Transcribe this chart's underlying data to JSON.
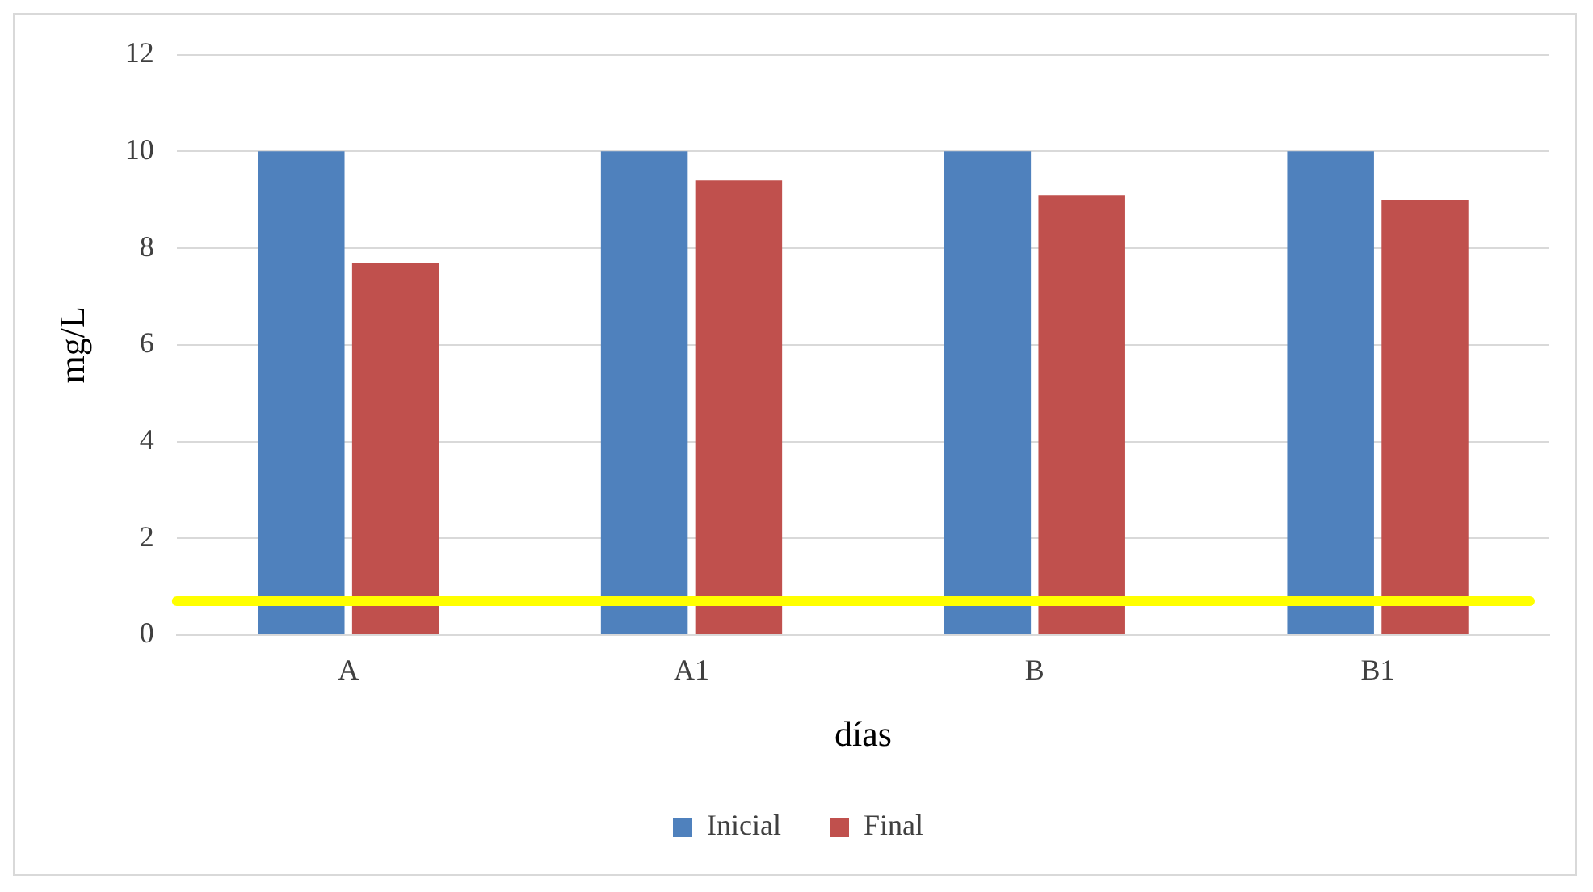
{
  "chart_data": {
    "type": "bar",
    "xlabel": "días",
    "ylabel": "mg/L",
    "categories": [
      "A",
      "A1",
      "B",
      "B1"
    ],
    "series": [
      {
        "name": "Inicial",
        "color": "#4f81bd",
        "values": [
          10,
          10,
          10,
          10
        ]
      },
      {
        "name": "Final",
        "color": "#c0504d",
        "values": [
          7.7,
          9.4,
          9.1,
          9.0
        ]
      }
    ],
    "ylim": [
      0,
      12
    ],
    "yticks": [
      0,
      2,
      4,
      6,
      8,
      10,
      12
    ],
    "grid": "y",
    "legend": "bottom",
    "ref_lines": [
      {
        "axis": "y",
        "value": 0.7,
        "color": "#ffff00"
      }
    ]
  }
}
